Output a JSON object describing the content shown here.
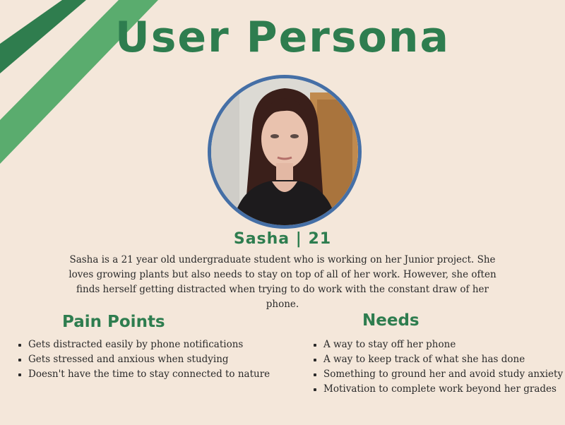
{
  "persona": {
    "title": "User Persona",
    "name_line": "Sasha | 21",
    "bio": "Sasha is a 21 year old undergraduate student who is working on her Junior project. She loves growing plants but also needs to stay on top of all of her work. However, she often finds herself getting distracted when trying to do work with the constant draw of her phone."
  },
  "pain_points": {
    "title": "Pain Points",
    "items": [
      "Gets distracted easily by phone notifications",
      "Gets stressed and anxious when studying",
      "Doesn't have the time to stay connected to nature"
    ]
  },
  "needs": {
    "title": "Needs",
    "items": [
      "A way to stay off her phone",
      "A way to keep track of what she has done",
      "Something to ground her and avoid study anxiety",
      "Motivation to complete work beyond her grades"
    ]
  },
  "colors": {
    "background": "#f4e7da",
    "accent_green": "#2e7d4f",
    "stripe_light": "#5aac6e",
    "ring_blue": "#456fa6"
  }
}
